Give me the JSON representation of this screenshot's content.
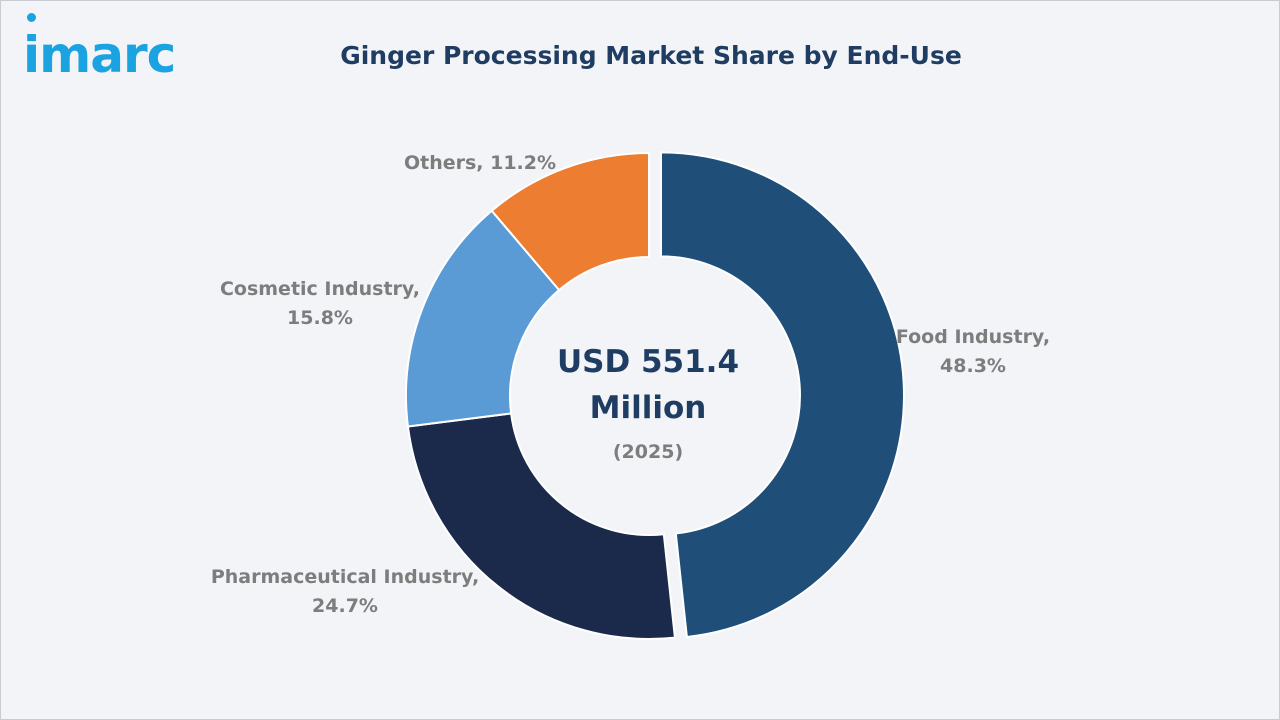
{
  "brand": {
    "name": "imarc",
    "color": "#1aa3e0"
  },
  "chart_data": {
    "type": "pie",
    "title": "Ginger Processing Market Share by End-Use",
    "center_text": {
      "line1": "USD 551.4",
      "line2": "Million",
      "line3": "(2025)"
    },
    "unit": "%",
    "categories": [
      "Food Industry",
      "Pharmaceutical Industry",
      "Cosmetic Industry",
      "Others"
    ],
    "values": [
      48.3,
      24.7,
      15.8,
      11.2
    ],
    "labels": [
      [
        "Food Industry,",
        "48.3%"
      ],
      [
        "Pharmaceutical Industry,",
        "24.7%"
      ],
      [
        "Cosmetic Industry,",
        "15.8%"
      ],
      [
        "Others, 11.2%"
      ]
    ],
    "colors": [
      "#1f4e79",
      "#1b2a4a",
      "#5b9bd5",
      "#ed7d31"
    ],
    "exploded": "Food Industry",
    "donut": true,
    "legend": "none"
  }
}
